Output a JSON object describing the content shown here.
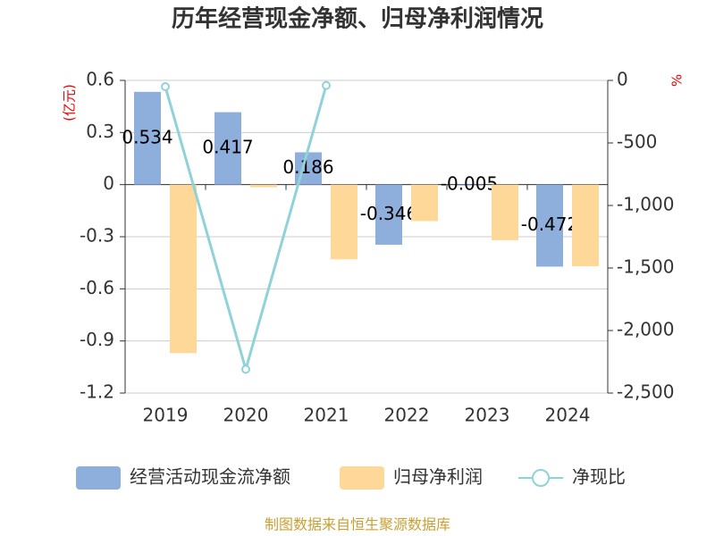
{
  "chart_data": {
    "type": "bar_line",
    "title": "历年经营现金净额、归母净利润情况",
    "y_label": "(亿元)",
    "y2_label": "%",
    "categories": [
      "2019",
      "2020",
      "2021",
      "2022",
      "2023",
      "2024"
    ],
    "series": [
      {
        "name": "经营活动现金流净额",
        "type": "bar",
        "color": "#8eaedc",
        "values": [
          0.534,
          0.417,
          0.186,
          -0.346,
          -0.005,
          -0.472
        ]
      },
      {
        "name": "归母净利润",
        "type": "bar",
        "color": "#fed898",
        "values": [
          -0.97,
          -0.015,
          -0.43,
          -0.21,
          -0.32,
          -0.47
        ]
      },
      {
        "name": "净现比",
        "type": "line",
        "axis": "y2",
        "color": "#8fd3d8",
        "values": [
          -50,
          -2310,
          -40,
          null,
          null,
          null
        ]
      }
    ],
    "ylim": [
      -1.2,
      0.6
    ],
    "yticks": [
      -1.2,
      -0.9,
      -0.6,
      -0.3,
      0,
      0.3,
      0.6
    ],
    "y2lim": [
      -2500,
      0
    ],
    "y2ticks": [
      {
        "value": -2500,
        "label": "-2,500"
      },
      {
        "value": -2000,
        "label": "-2,000"
      },
      {
        "value": -1500,
        "label": "-1,500"
      },
      {
        "value": -1000,
        "label": "-1,000"
      },
      -500,
      0
    ],
    "grid": true,
    "source": "制图数据来自恒生聚源数据库"
  }
}
